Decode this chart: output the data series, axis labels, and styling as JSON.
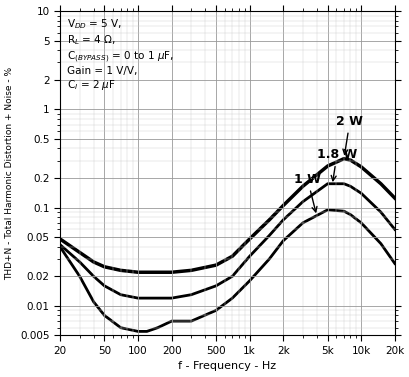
{
  "xlabel": "f - Frequency - Hz",
  "ylabel": "THD+N - Total Harmonic Distortion + Noise - %",
  "xlim": [
    20,
    20000
  ],
  "ylim": [
    0.005,
    10
  ],
  "curve_2W": {
    "freq": [
      20,
      30,
      40,
      50,
      70,
      100,
      150,
      200,
      300,
      500,
      700,
      1000,
      1500,
      2000,
      3000,
      5000,
      7000,
      8000,
      10000,
      15000,
      20000
    ],
    "thd": [
      0.048,
      0.035,
      0.028,
      0.025,
      0.023,
      0.022,
      0.022,
      0.022,
      0.023,
      0.026,
      0.032,
      0.048,
      0.075,
      0.105,
      0.165,
      0.265,
      0.315,
      0.305,
      0.26,
      0.175,
      0.125
    ]
  },
  "curve_1p8W": {
    "freq": [
      20,
      30,
      40,
      50,
      70,
      100,
      150,
      200,
      300,
      500,
      700,
      1000,
      1500,
      2000,
      3000,
      5000,
      7000,
      8000,
      10000,
      15000,
      20000
    ],
    "thd": [
      0.042,
      0.028,
      0.02,
      0.016,
      0.013,
      0.012,
      0.012,
      0.012,
      0.013,
      0.016,
      0.02,
      0.032,
      0.052,
      0.075,
      0.115,
      0.175,
      0.175,
      0.165,
      0.14,
      0.09,
      0.06
    ]
  },
  "curve_1W": {
    "freq": [
      20,
      30,
      40,
      50,
      70,
      100,
      120,
      150,
      200,
      300,
      500,
      700,
      1000,
      1500,
      2000,
      3000,
      5000,
      7000,
      8000,
      10000,
      15000,
      20000
    ],
    "thd": [
      0.04,
      0.02,
      0.011,
      0.008,
      0.006,
      0.0055,
      0.0055,
      0.006,
      0.007,
      0.007,
      0.009,
      0.012,
      0.018,
      0.03,
      0.046,
      0.07,
      0.095,
      0.092,
      0.085,
      0.07,
      0.043,
      0.027
    ]
  },
  "line_color": "#000000",
  "bg_color": "#ffffff",
  "grid_major_color": "#999999",
  "grid_minor_color": "#cccccc"
}
